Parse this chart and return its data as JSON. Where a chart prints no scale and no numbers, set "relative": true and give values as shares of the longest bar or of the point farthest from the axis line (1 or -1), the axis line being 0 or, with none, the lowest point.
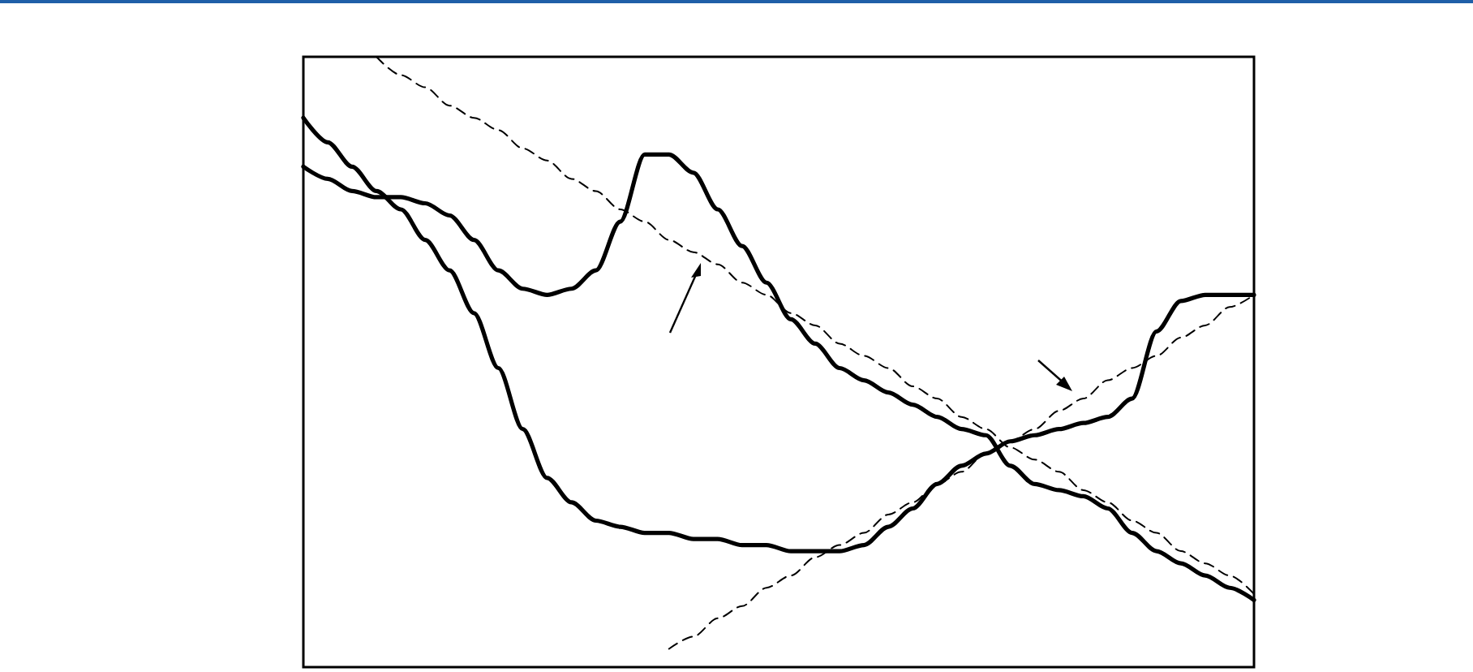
{
  "chart_data": {
    "type": "line",
    "relative": true,
    "marker": "none",
    "categories": [
      null,
      null,
      null,
      null,
      null,
      null,
      null,
      null,
      null,
      null,
      null,
      null,
      null,
      null,
      null,
      null,
      null,
      null,
      null,
      null,
      null,
      null,
      null,
      null,
      null,
      null,
      null,
      null,
      null,
      null,
      null,
      null,
      null,
      null,
      null,
      null,
      null,
      null,
      null,
      null
    ],
    "series": [
      {
        "color": "#000000",
        "line_style": "solid",
        "values": [
          0.82,
          0.8,
          0.78,
          0.77,
          0.77,
          0.76,
          0.74,
          0.7,
          0.65,
          0.62,
          0.61,
          0.62,
          0.65,
          0.73,
          0.84,
          0.84,
          0.81,
          0.75,
          0.69,
          0.63,
          0.57,
          0.53,
          0.49,
          0.47,
          0.45,
          0.43,
          0.41,
          0.39,
          0.38,
          0.33,
          0.3,
          0.29,
          0.28,
          0.26,
          0.22,
          0.19,
          0.17,
          0.15,
          0.13,
          0.11
        ]
      },
      {
        "color": "#000000",
        "line_style": "solid",
        "values": [
          0.9,
          0.86,
          0.82,
          0.78,
          0.75,
          0.7,
          0.65,
          0.58,
          0.49,
          0.39,
          0.31,
          0.27,
          0.24,
          0.23,
          0.22,
          0.22,
          0.21,
          0.21,
          0.2,
          0.2,
          0.19,
          0.19,
          0.19,
          0.2,
          0.23,
          0.26,
          0.3,
          0.33,
          0.35,
          0.37,
          0.38,
          0.39,
          0.4,
          0.41,
          0.44,
          0.55,
          0.6,
          0.61,
          0.61,
          0.61
        ]
      },
      {
        "color": "#000000",
        "line_style": "dashed",
        "values": [
          null,
          null,
          null,
          1.0,
          0.97,
          0.95,
          0.92,
          0.9,
          0.88,
          0.85,
          0.83,
          0.8,
          0.78,
          0.75,
          0.73,
          0.7,
          0.68,
          0.66,
          0.63,
          0.61,
          0.58,
          0.56,
          0.53,
          0.51,
          0.49,
          0.46,
          0.44,
          0.41,
          0.39,
          0.36,
          0.34,
          0.32,
          0.29,
          0.27,
          0.24,
          0.22,
          0.19,
          0.17,
          0.15,
          0.12
        ]
      },
      {
        "color": "#000000",
        "line_style": "dashed",
        "values": [
          null,
          null,
          null,
          null,
          null,
          null,
          null,
          null,
          null,
          null,
          null,
          null,
          null,
          null,
          null,
          0.03,
          0.05,
          0.08,
          0.1,
          0.13,
          0.15,
          0.18,
          0.2,
          0.22,
          0.25,
          0.27,
          0.3,
          0.32,
          0.35,
          0.37,
          0.39,
          0.42,
          0.44,
          0.47,
          0.49,
          0.51,
          0.54,
          0.56,
          0.59,
          0.61
        ]
      }
    ]
  }
}
